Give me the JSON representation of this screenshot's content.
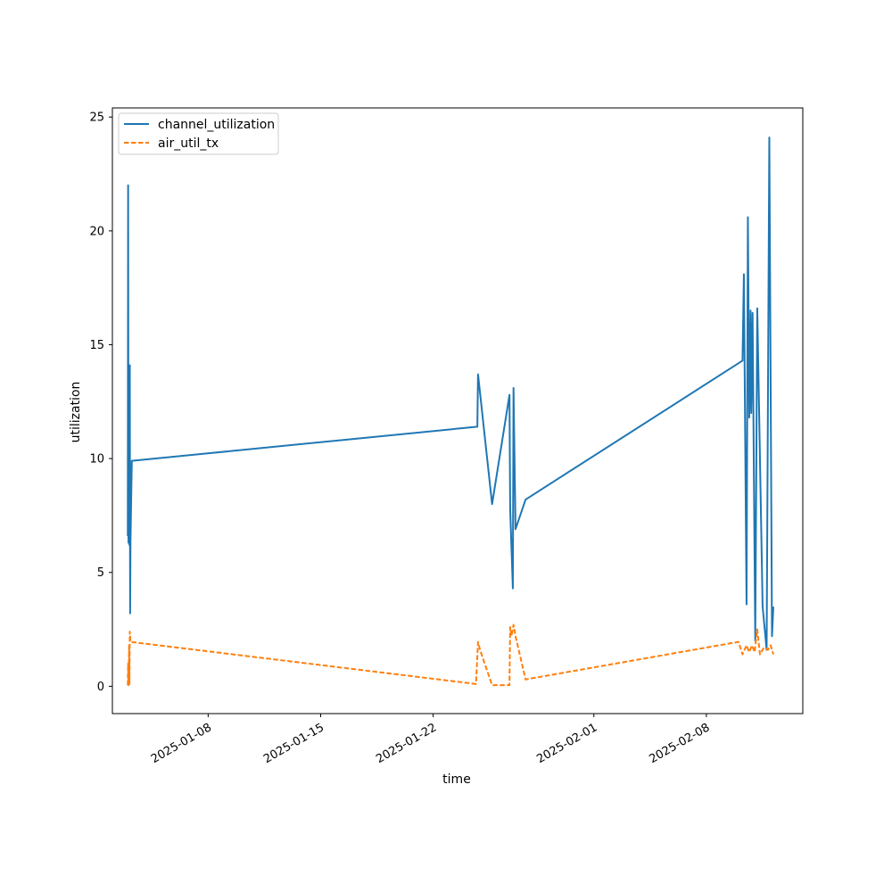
{
  "chart_data": {
    "type": "line",
    "title": "",
    "xlabel": "time",
    "ylabel": "utilization",
    "x_type": "datetime",
    "xlim": [
      "2025-01-02T01:00",
      "2025-02-14T00:00"
    ],
    "ylim": [
      -1.2,
      25.4
    ],
    "x_ticks": [
      "2025-01-08",
      "2025-01-15",
      "2025-01-22",
      "2025-02-01",
      "2025-02-08"
    ],
    "y_ticks": [
      0,
      5,
      10,
      15,
      20,
      25
    ],
    "grid": false,
    "legend_position": "upper-left",
    "colors": {
      "channel_utilization": "#1f77b4",
      "air_util_tx": "#ff7f0e"
    },
    "series": [
      {
        "name": "channel_utilization",
        "style": "solid",
        "points": [
          [
            "2025-01-03T00:00",
            6.6
          ],
          [
            "2025-01-03T00:30",
            22.0
          ],
          [
            "2025-01-03T01:00",
            6.3
          ],
          [
            "2025-01-03T02:00",
            14.1
          ],
          [
            "2025-01-03T02:30",
            6.2
          ],
          [
            "2025-01-03T03:00",
            14.1
          ],
          [
            "2025-01-03T03:30",
            3.2
          ],
          [
            "2025-01-03T04:00",
            6.3
          ],
          [
            "2025-01-03T06:00",
            9.9
          ],
          [
            "2025-01-24T18:00",
            11.4
          ],
          [
            "2025-01-24T19:00",
            13.7
          ],
          [
            "2025-01-25T16:00",
            8.0
          ],
          [
            "2025-01-26T18:00",
            12.8
          ],
          [
            "2025-01-26T19:00",
            7.8
          ],
          [
            "2025-01-26T23:00",
            4.3
          ],
          [
            "2025-01-27T00:00",
            13.1
          ],
          [
            "2025-01-27T03:00",
            6.9
          ],
          [
            "2025-01-27T18:00",
            8.2
          ],
          [
            "2025-02-10T06:00",
            14.3
          ],
          [
            "2025-02-10T08:00",
            18.1
          ],
          [
            "2025-02-10T12:00",
            3.6
          ],
          [
            "2025-02-10T14:00",
            20.6
          ],
          [
            "2025-02-10T16:00",
            11.8
          ],
          [
            "2025-02-10T18:00",
            16.5
          ],
          [
            "2025-02-10T19:00",
            12.0
          ],
          [
            "2025-02-10T21:00",
            16.4
          ],
          [
            "2025-02-11T01:00",
            2.0
          ],
          [
            "2025-02-11T04:00",
            16.6
          ],
          [
            "2025-02-11T12:00",
            3.5
          ],
          [
            "2025-02-11T18:00",
            1.6
          ],
          [
            "2025-02-11T22:00",
            24.1
          ],
          [
            "2025-02-12T02:00",
            2.2
          ],
          [
            "2025-02-12T04:00",
            3.5
          ]
        ]
      },
      {
        "name": "air_util_tx",
        "style": "dashed",
        "points": [
          [
            "2025-01-03T00:00",
            0.05
          ],
          [
            "2025-01-03T00:30",
            1.0
          ],
          [
            "2025-01-03T01:00",
            0.05
          ],
          [
            "2025-01-03T02:00",
            1.8
          ],
          [
            "2025-01-03T02:30",
            0.1
          ],
          [
            "2025-01-03T03:00",
            2.4
          ],
          [
            "2025-01-03T04:00",
            1.95
          ],
          [
            "2025-01-24T16:00",
            0.1
          ],
          [
            "2025-01-24T19:00",
            1.95
          ],
          [
            "2025-01-24T22:00",
            1.6
          ],
          [
            "2025-01-25T16:00",
            0.05
          ],
          [
            "2025-01-26T18:00",
            0.05
          ],
          [
            "2025-01-26T19:00",
            2.6
          ],
          [
            "2025-01-26T21:00",
            2.2
          ],
          [
            "2025-01-27T00:00",
            2.7
          ],
          [
            "2025-01-27T03:00",
            2.2
          ],
          [
            "2025-01-27T18:00",
            0.3
          ],
          [
            "2025-02-10T00:00",
            1.95
          ],
          [
            "2025-02-10T06:00",
            1.4
          ],
          [
            "2025-02-10T12:00",
            1.8
          ],
          [
            "2025-02-10T16:00",
            1.5
          ],
          [
            "2025-02-10T20:00",
            1.8
          ],
          [
            "2025-02-11T00:00",
            1.5
          ],
          [
            "2025-02-11T04:00",
            2.5
          ],
          [
            "2025-02-11T08:00",
            1.4
          ],
          [
            "2025-02-11T14:00",
            1.7
          ],
          [
            "2025-02-11T20:00",
            1.6
          ],
          [
            "2025-02-12T00:00",
            1.8
          ],
          [
            "2025-02-12T04:00",
            1.4
          ]
        ]
      }
    ]
  }
}
